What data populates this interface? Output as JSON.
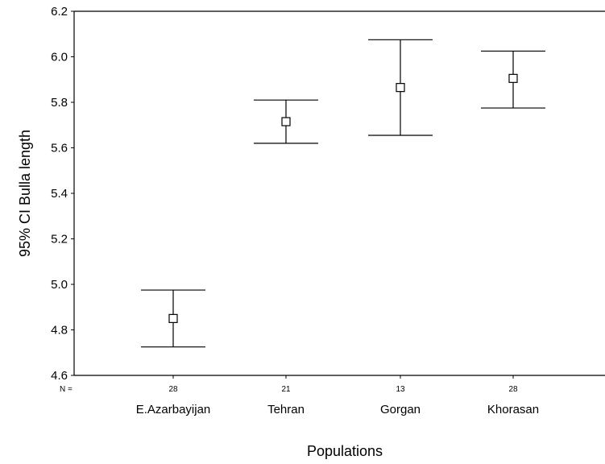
{
  "chart_data": {
    "type": "errorbar",
    "title": "",
    "xlabel": "Populations",
    "ylabel": "95% CI Bulla length",
    "ylim": [
      4.6,
      6.2
    ],
    "yticks": [
      "4.6",
      "4.8",
      "5.0",
      "5.2",
      "5.4",
      "5.6",
      "5.8",
      "6.0",
      "6.2"
    ],
    "n_label": "N =",
    "categories": [
      {
        "name": "E.Azarbayijan",
        "n": "28",
        "mean": 4.85,
        "lower": 4.725,
        "upper": 4.975
      },
      {
        "name": "Tehran",
        "n": "21",
        "mean": 5.715,
        "lower": 5.62,
        "upper": 5.81
      },
      {
        "name": "Gorgan",
        "n": "13",
        "mean": 5.865,
        "lower": 5.655,
        "upper": 6.075
      },
      {
        "name": "Khorasan",
        "n": "28",
        "mean": 5.905,
        "lower": 5.775,
        "upper": 6.025
      }
    ],
    "marker": "open-square",
    "grid": false,
    "colors": {
      "line": "#000000",
      "background": "#ffffff"
    }
  }
}
